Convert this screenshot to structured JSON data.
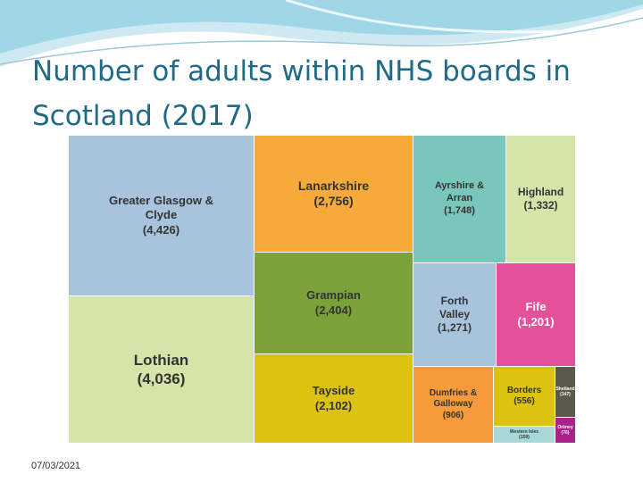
{
  "title": "Number of adults within NHS boards in Scotland (2017)",
  "footer": {
    "date": "07/03/2021"
  },
  "chart_data": {
    "type": "treemap",
    "title": "",
    "items": [
      {
        "name": "Greater Glasgow & Clyde",
        "value": 4426,
        "label": "(4,426)",
        "color": "#a8c4dc"
      },
      {
        "name": "Lothian",
        "value": 4036,
        "label": "(4,036)",
        "color": "#d5e4a8"
      },
      {
        "name": "Lanarkshire",
        "value": 2756,
        "label": "(2,756)",
        "color": "#f7a93a"
      },
      {
        "name": "Grampian",
        "value": 2404,
        "label": "(2,404)",
        "color": "#7ba23a"
      },
      {
        "name": "Tayside",
        "value": 2102,
        "label": "(2,102)",
        "color": "#dcc310"
      },
      {
        "name": "Ayrshire & Arran",
        "value": 1748,
        "label": "(1,748)",
        "color": "#79c7ba"
      },
      {
        "name": "Highland",
        "value": 1332,
        "label": "(1,332)",
        "color": "#d5e4a8"
      },
      {
        "name": "Forth Valley",
        "value": 1271,
        "label": "(1,271)",
        "color": "#a8c4dc"
      },
      {
        "name": "Fife",
        "value": 1201,
        "label": "(1,201)",
        "color": "#e5509b"
      },
      {
        "name": "Dumfries & Galloway",
        "value": 906,
        "label": "(906)",
        "color": "#f79a3b"
      },
      {
        "name": "Borders",
        "value": 556,
        "label": "(556)",
        "color": "#dcc310"
      },
      {
        "name": "Shetland",
        "value": 147,
        "label": "(147)",
        "color": "#5a5a4a"
      },
      {
        "name": "Western Isles",
        "value": 159,
        "label": "(159)",
        "color": "#a8d8d8"
      },
      {
        "name": "Orkney",
        "value": 76,
        "label": "(76)",
        "color": "#a8238a"
      }
    ]
  }
}
